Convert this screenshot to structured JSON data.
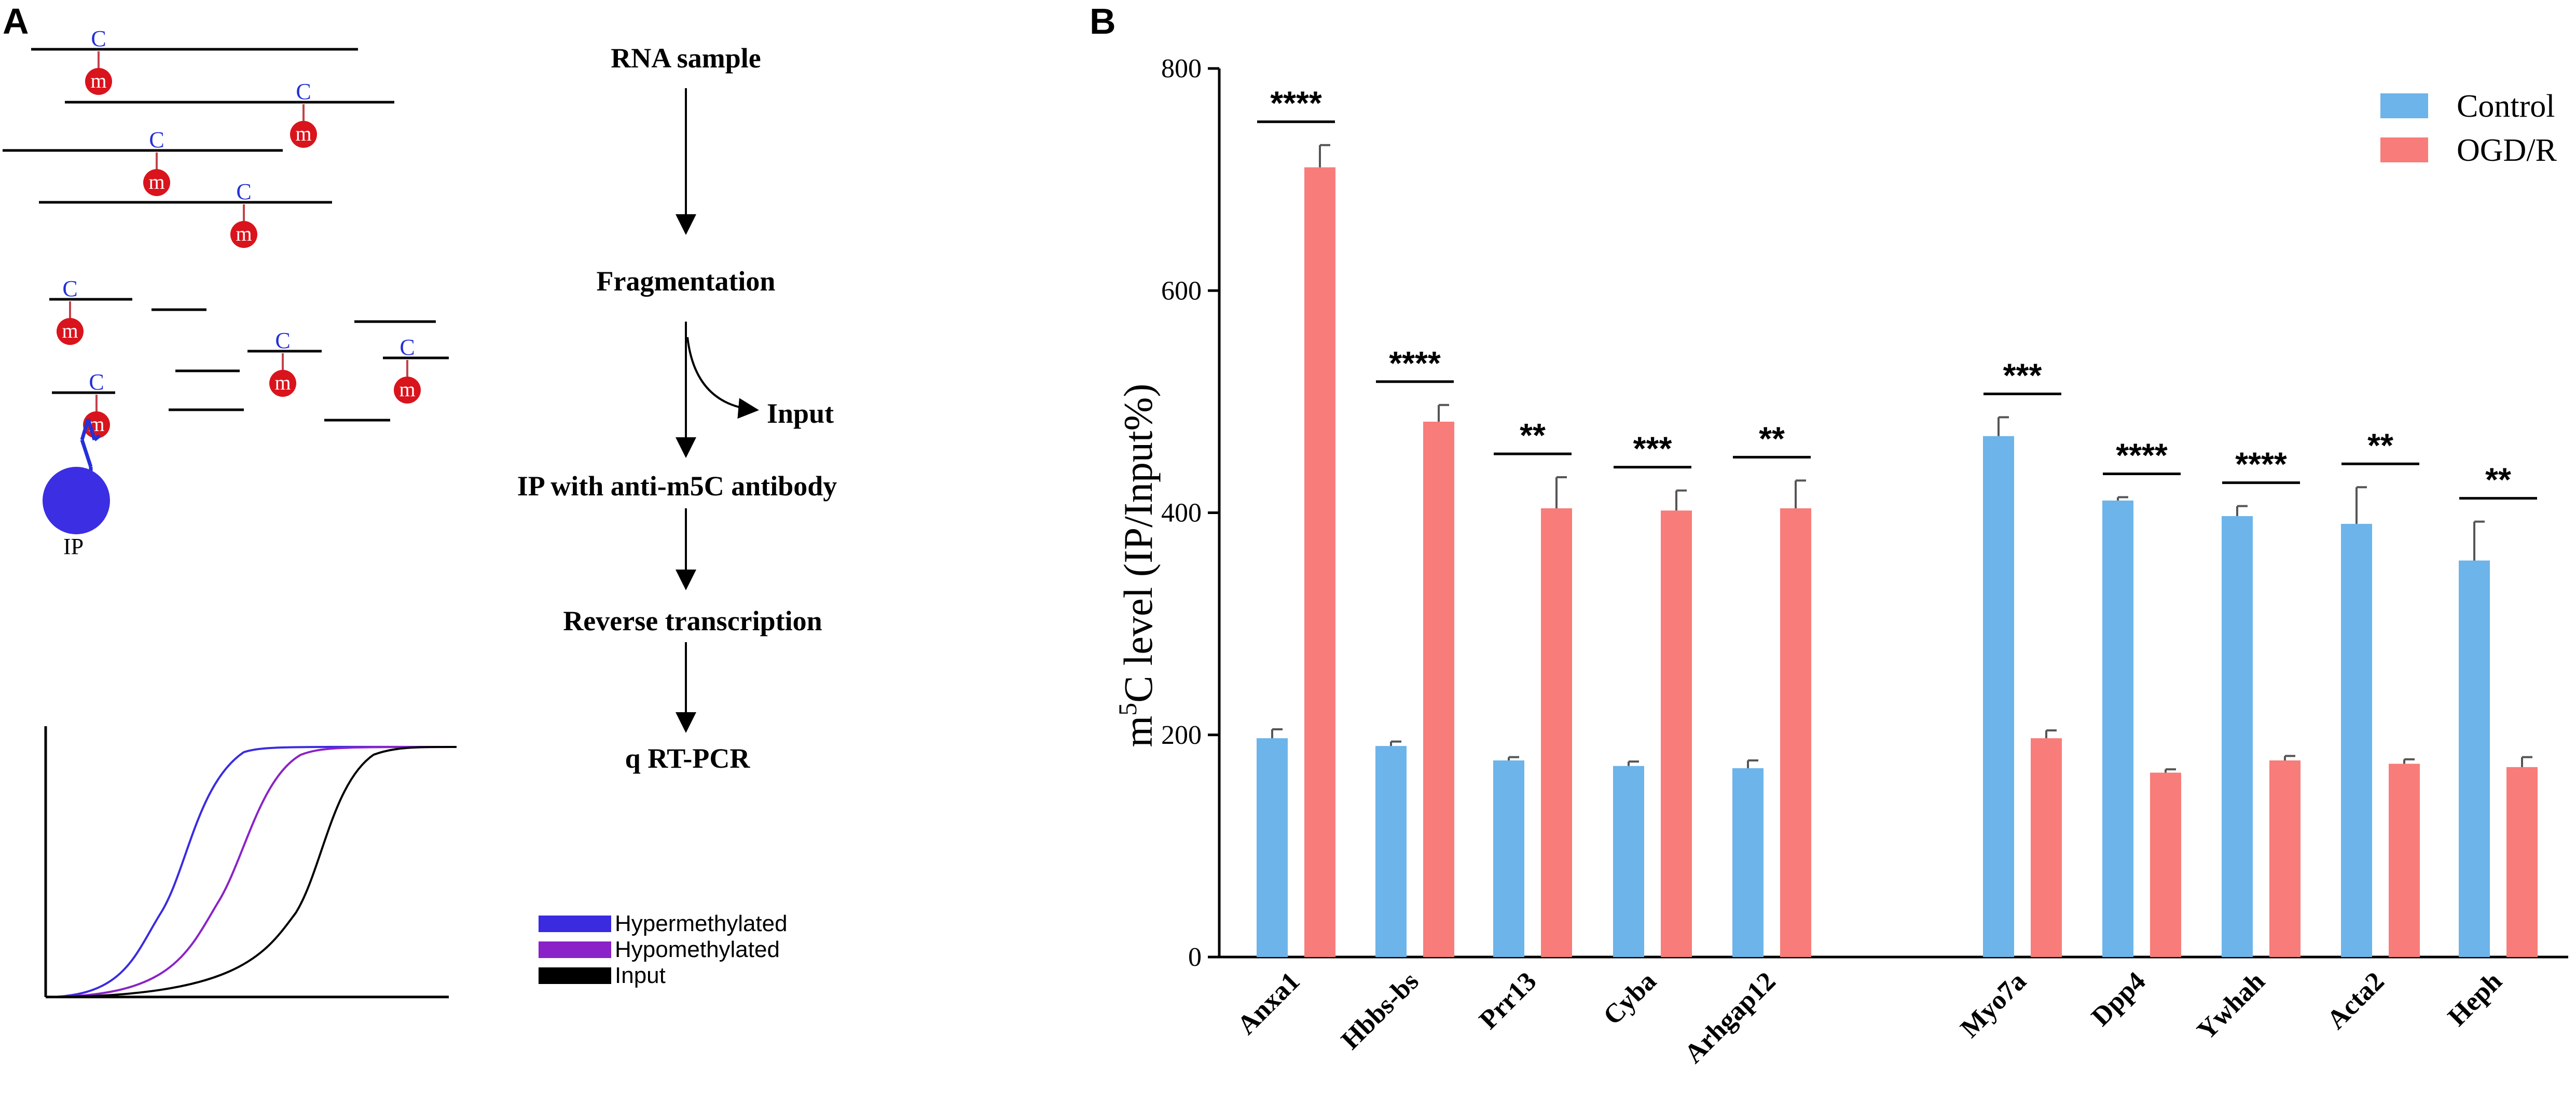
{
  "panels": {
    "a": "A",
    "b": "B"
  },
  "workflow": {
    "steps": [
      "RNA sample",
      "Fragmentation",
      "IP with anti-m5C antibody",
      "Reverse transcription",
      "q RT-PCR"
    ],
    "branch": "Input"
  },
  "schematic": {
    "c_label": "C",
    "m_label": "m",
    "ip_label": "IP"
  },
  "curve_legend": [
    {
      "label": "Hypermethylated",
      "color": "#3a2be0"
    },
    {
      "label": "Hypomethylated",
      "color": "#8a22c8"
    },
    {
      "label": "Input",
      "color": "#000000"
    }
  ],
  "chart_data": {
    "type": "bar",
    "ylabel": "m5C level (IP/Input%)",
    "ylabel_parts": {
      "base": "m",
      "sup": "5",
      "rest": "C level (IP/Input%)"
    },
    "ylim": [
      0,
      800
    ],
    "yticks": [
      "0",
      "200",
      "400",
      "600",
      "800"
    ],
    "categories": [
      "Anxa1",
      "Hbbs-bs",
      "Prr13",
      "Cyba",
      "Arhgap12",
      "Myo7a",
      "Dpp4",
      "Ywhah",
      "Acta2",
      "Heph"
    ],
    "series": [
      {
        "name": "Control",
        "color": "#6cb4ea",
        "values": [
          197,
          190,
          177,
          172,
          170,
          469,
          411,
          397,
          390,
          357
        ],
        "errors": [
          8,
          4,
          3,
          4,
          7,
          17,
          3,
          9,
          33,
          35
        ]
      },
      {
        "name": "OGD/R",
        "color": "#f87c79",
        "values": [
          711,
          482,
          404,
          402,
          404,
          197,
          166,
          177,
          174,
          171
        ],
        "errors": [
          20,
          15,
          28,
          18,
          25,
          7,
          3,
          4,
          4,
          9
        ]
      }
    ],
    "significance": [
      "****",
      "****",
      "**",
      "***",
      "**",
      "***",
      "****",
      "****",
      "**",
      "**"
    ],
    "legend": [
      "Control",
      "OGD/R"
    ]
  }
}
